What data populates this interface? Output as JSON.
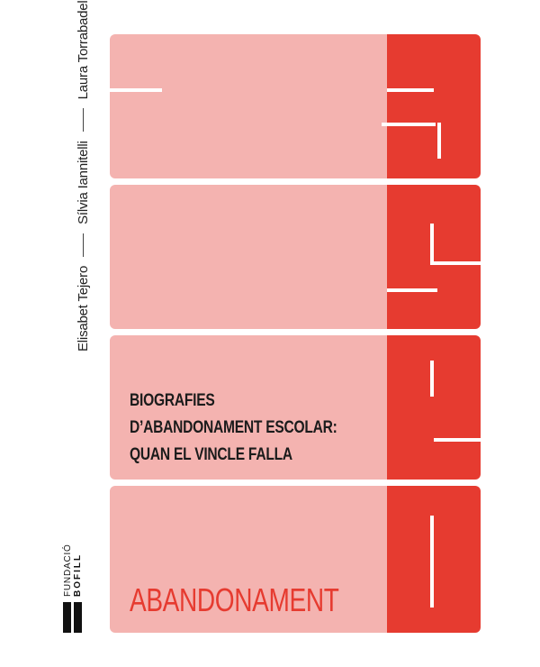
{
  "authors": [
    "Laura Torrabadella",
    "Sílvia Iannitelli",
    "Elisabet Tejero"
  ],
  "title_lines": [
    "BIOGRAFIES",
    "D’ABANDONAMENT ESCOLAR:",
    "QUAN EL VINCLE FALLA"
  ],
  "series_name": "ABANDONAMENT",
  "logo": {
    "line1": "FUNDACIÓ",
    "line2": "BOFILL"
  },
  "colors": {
    "pink": "#f4b3b0",
    "red": "#e63b30",
    "text": "#1b1b1b"
  }
}
